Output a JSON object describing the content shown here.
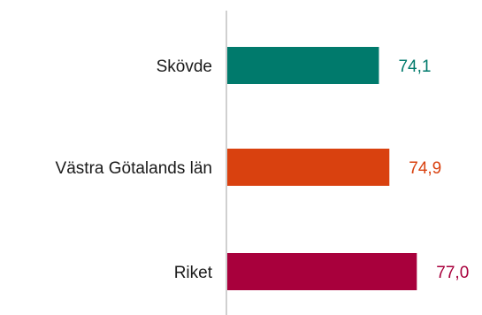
{
  "chart_data": {
    "type": "bar",
    "orientation": "horizontal",
    "title": "",
    "xlabel": "",
    "ylabel": "",
    "categories": [
      "Skövde",
      "Västra Götalands län",
      "Riket"
    ],
    "values": [
      74.1,
      74.9,
      77.0
    ],
    "value_labels": [
      "74,1",
      "74,9",
      "77,0"
    ],
    "colors": [
      "#007a6c",
      "#d9410f",
      "#a8003c"
    ],
    "xlim": [
      62.5,
      83.0
    ],
    "grid": false,
    "legend": "none",
    "baseline_color": "#d0d0d0"
  }
}
